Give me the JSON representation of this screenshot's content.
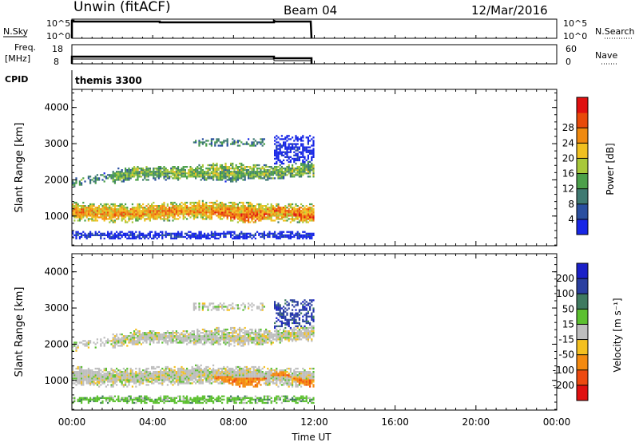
{
  "header": {
    "station": "Unwin (fitACF)",
    "beam": "Beam 04",
    "date": "12/Mar/2016"
  },
  "summary": {
    "nsky_label": "N.Sky",
    "nsky_ticks": [
      "10^5",
      "10^0"
    ],
    "nsearch_label": "N.Search",
    "freq_label_line1": "Freq.",
    "freq_label_line2": "[MHz]",
    "freq_ticks": [
      "18",
      "8"
    ],
    "nave_label": "Nave",
    "nave_ticks": [
      "60",
      "0"
    ],
    "cpid_label": "CPID",
    "cpid_value": "themis 3300"
  },
  "colors": {
    "power": [
      "#1726e6",
      "#2a4fa0",
      "#3f7a72",
      "#4ca04a",
      "#a8c83a",
      "#f0c020",
      "#f08a10",
      "#e84a0a",
      "#e01010"
    ],
    "velocity": [
      "#e01010",
      "#ee4a10",
      "#f48a10",
      "#f4c020",
      "#bebebe",
      "#5cc030",
      "#3f7a60",
      "#2a3fa0",
      "#1a20c8"
    ]
  },
  "chart_data": [
    {
      "type": "heatmap",
      "name_ref": "power",
      "x_range": [
        "00:00",
        "24:00"
      ],
      "y_range": [
        180,
        4500
      ],
      "data_x_extent": [
        "00:00",
        "12:00"
      ],
      "ylabel": "Slant Range [km]",
      "yticks": [
        "1000",
        "2000",
        "3000",
        "4000"
      ],
      "colorbar_label": "Power [dB]",
      "colorbar_ticks": [
        "4",
        "8",
        "12",
        "16",
        "20",
        "24",
        "28"
      ]
    },
    {
      "type": "heatmap",
      "name_ref": "velocity",
      "x_range": [
        "00:00",
        "24:00"
      ],
      "y_range": [
        180,
        4500
      ],
      "data_x_extent": [
        "00:00",
        "12:00"
      ],
      "ylabel": "Slant Range [km]",
      "yticks": [
        "1000",
        "2000",
        "3000",
        "4000"
      ],
      "xlabel": "Time UT",
      "xticks": [
        "00:00",
        "04:00",
        "08:00",
        "12:00",
        "16:00",
        "20:00",
        "00:00"
      ],
      "colorbar_label": "Velocity [m s⁻¹]",
      "colorbar_ticks": [
        "200",
        "100",
        "50",
        "15",
        "-15",
        "-50",
        "-100",
        "-200"
      ]
    }
  ]
}
